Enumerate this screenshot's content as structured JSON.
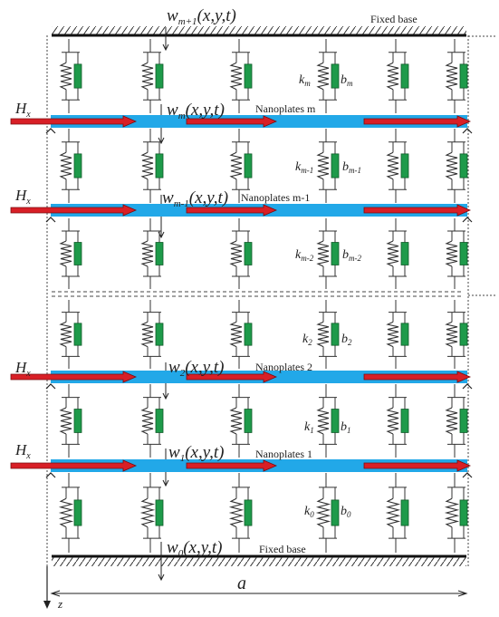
{
  "labels": {
    "top_base": "Fixed base",
    "bottom_base": "Fixed base",
    "width_label": "a",
    "z_axis": "z",
    "field_symbol": "H",
    "field_sub": "x"
  },
  "plates": [
    {
      "w_main": "w",
      "w_sub": "m",
      "w_args": "(x,y,t)",
      "name": "Nanoplates m"
    },
    {
      "w_main": "w",
      "w_sub": "m-1",
      "w_args": "(x,y,t)",
      "name": "Nanoplates m-1"
    },
    {
      "w_main": "w",
      "w_sub": "2",
      "w_args": "(x,y,t)",
      "name": "Nanoplates 2"
    },
    {
      "w_main": "w",
      "w_sub": "1",
      "w_args": "(x,y,t)",
      "name": "Nanoplates 1"
    }
  ],
  "top_displacement": {
    "w_main": "w",
    "w_sub": "m+1",
    "w_args": "(x,y,t)"
  },
  "bottom_displacement": {
    "w_main": "w",
    "w_sub": "0",
    "w_args": "(x,y,t)"
  },
  "layers": [
    {
      "k_main": "k",
      "k_sub": "m",
      "b_main": "b",
      "b_sub": "m"
    },
    {
      "k_main": "k",
      "k_sub": "m-1",
      "b_main": "b",
      "b_sub": "m-1"
    },
    {
      "k_main": "k",
      "k_sub": "m-2",
      "b_main": "b",
      "b_sub": "m-2"
    },
    {
      "k_main": "k",
      "k_sub": "2",
      "b_main": "b",
      "b_sub": "2"
    },
    {
      "k_main": "k",
      "k_sub": "1",
      "b_main": "b",
      "b_sub": "1"
    },
    {
      "k_main": "k",
      "k_sub": "0",
      "b_main": "b",
      "b_sub": "0"
    }
  ],
  "colors": {
    "plate": "#22a8e8",
    "arrow_fill": "#d81f26",
    "arrow_edge": "#7a0c10",
    "damper": "#1e9a4a",
    "line": "#333333"
  }
}
